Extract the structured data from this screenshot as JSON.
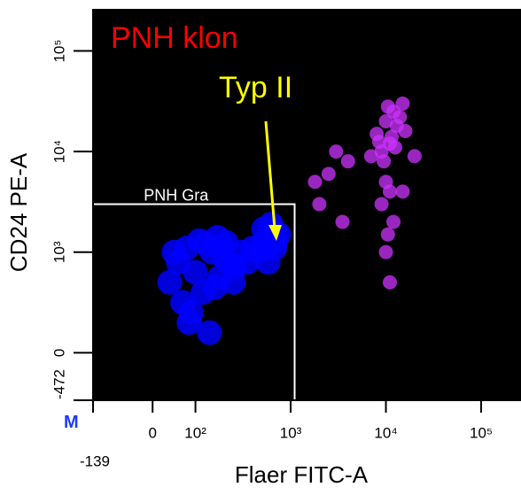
{
  "chart_data": {
    "type": "scatter",
    "title": "PNH klon",
    "annotation": "Typ II",
    "marker_label": "M",
    "x_label": "Flaer FITC-A",
    "y_label": "CD24 PE-A",
    "xscale": "biexponential",
    "yscale": "biexponential",
    "xlim": [
      -139,
      262144
    ],
    "ylim": [
      -472,
      262144
    ],
    "xticks": [
      {
        "value": -139,
        "label": "-139"
      },
      0,
      {
        "value": 100,
        "label": "10²"
      },
      {
        "value": 1000,
        "label": "10³"
      },
      {
        "value": 10000,
        "label": "10⁴"
      },
      {
        "value": 100000,
        "label": "10⁵"
      }
    ],
    "yticks": [
      {
        "value": -472,
        "label": "-472"
      },
      0,
      {
        "value": 1000,
        "label": "10³"
      },
      {
        "value": 10000,
        "label": "10⁴"
      },
      {
        "value": 100000,
        "label": "10⁵"
      }
    ],
    "gate": {
      "label": "PNH Gra",
      "x": [
        -139,
        1100
      ],
      "y": [
        -472,
        3000
      ]
    },
    "series": [
      {
        "color": "#0000ff",
        "x": [
          40,
          60,
          80,
          100,
          120,
          150,
          180,
          200,
          70,
          90,
          110,
          130,
          160,
          190,
          220,
          250,
          50,
          85,
          140,
          170,
          210,
          260,
          300,
          350,
          400,
          450,
          500,
          550,
          600,
          650,
          700,
          750,
          520,
          620,
          680,
          580
        ],
        "y": [
          700,
          900,
          1100,
          800,
          600,
          1000,
          750,
          950,
          500,
          400,
          1300,
          1200,
          650,
          1150,
          900,
          700,
          1000,
          300,
          200,
          1400,
          1250,
          850,
          1000,
          900,
          1100,
          1000,
          1200,
          1100,
          1400,
          1600,
          1300,
          1500,
          1700,
          1900,
          1100,
          900
        ]
      },
      {
        "color": "#cc33ff",
        "x": [
          8000,
          10000,
          12000,
          15000,
          9000,
          11000,
          13000,
          7000,
          14000,
          10500,
          16000,
          8500,
          12500,
          9500,
          11500,
          10000,
          11000,
          9000,
          12000,
          10500,
          10000,
          11000,
          3000,
          2500,
          4000,
          2000,
          1800,
          3500,
          20000,
          15000
        ],
        "y": [
          15000,
          20000,
          25000,
          30000,
          10000,
          12000,
          18000,
          9000,
          22000,
          28000,
          16000,
          12500,
          11000,
          8000,
          14000,
          5000,
          4000,
          3000,
          2000,
          1500,
          1000,
          700,
          10000,
          6000,
          8000,
          3000,
          5000,
          2000,
          9000,
          4000
        ]
      }
    ]
  }
}
